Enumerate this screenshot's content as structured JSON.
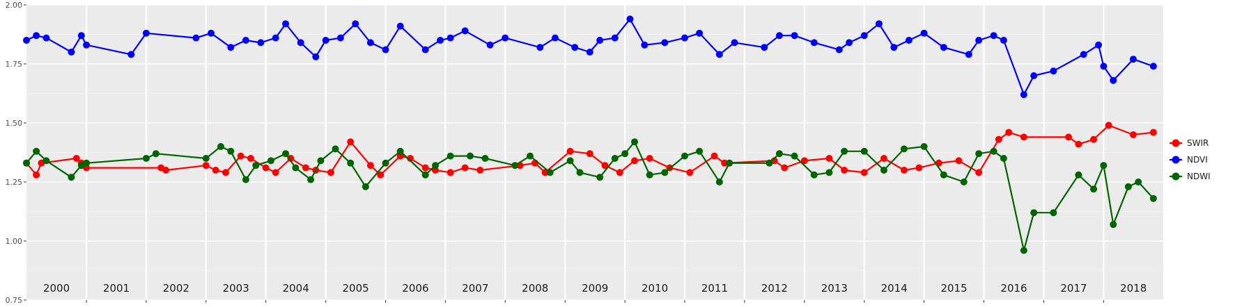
{
  "chart_data": {
    "type": "line",
    "title": "",
    "xlabel": "",
    "ylabel": "",
    "ylim": [
      0.75,
      2.0
    ],
    "xlim": [
      "2000-01-01",
      "2018-12-31"
    ],
    "y_ticks": [
      "0.75",
      "1.00",
      "1.25",
      "1.50",
      "1.75",
      "2.00"
    ],
    "year_labels": [
      "2000",
      "2001",
      "2002",
      "2003",
      "2004",
      "2005",
      "2006",
      "2007",
      "2008",
      "2009",
      "2010",
      "2011",
      "2012",
      "2013",
      "2014",
      "2015",
      "2016",
      "2017",
      "2018"
    ],
    "grid": true,
    "legend_position": "right",
    "series": [
      {
        "name": "SWIR",
        "color": "#ff0000",
        "points": [
          [
            "2000-01-01",
            1.33
          ],
          [
            "2000-03-01",
            1.28
          ],
          [
            "2000-04-01",
            1.33
          ],
          [
            "2000-11-01",
            1.35
          ],
          [
            "2000-12-01",
            1.33
          ],
          [
            "2001-01-01",
            1.31
          ],
          [
            "2002-04-01",
            1.31
          ],
          [
            "2002-05-01",
            1.3
          ],
          [
            "2003-01-01",
            1.32
          ],
          [
            "2003-03-01",
            1.3
          ],
          [
            "2003-05-01",
            1.29
          ],
          [
            "2003-08-01",
            1.36
          ],
          [
            "2003-10-01",
            1.35
          ],
          [
            "2004-01-01",
            1.31
          ],
          [
            "2004-03-01",
            1.29
          ],
          [
            "2004-06-01",
            1.35
          ],
          [
            "2004-09-01",
            1.31
          ],
          [
            "2004-11-01",
            1.3
          ],
          [
            "2005-02-01",
            1.29
          ],
          [
            "2005-06-01",
            1.42
          ],
          [
            "2005-10-01",
            1.32
          ],
          [
            "2005-12-01",
            1.28
          ],
          [
            "2006-04-01",
            1.36
          ],
          [
            "2006-06-01",
            1.35
          ],
          [
            "2006-09-01",
            1.31
          ],
          [
            "2006-11-01",
            1.3
          ],
          [
            "2007-02-01",
            1.29
          ],
          [
            "2007-05-01",
            1.31
          ],
          [
            "2007-08-01",
            1.3
          ],
          [
            "2008-04-01",
            1.32
          ],
          [
            "2008-07-01",
            1.33
          ],
          [
            "2008-09-01",
            1.29
          ],
          [
            "2009-02-01",
            1.38
          ],
          [
            "2009-06-01",
            1.37
          ],
          [
            "2009-09-01",
            1.32
          ],
          [
            "2009-12-01",
            1.29
          ],
          [
            "2010-03-01",
            1.34
          ],
          [
            "2010-06-01",
            1.35
          ],
          [
            "2010-10-01",
            1.31
          ],
          [
            "2011-02-01",
            1.29
          ],
          [
            "2011-07-01",
            1.36
          ],
          [
            "2011-09-01",
            1.33
          ],
          [
            "2012-07-01",
            1.34
          ],
          [
            "2012-09-01",
            1.31
          ],
          [
            "2013-01-01",
            1.34
          ],
          [
            "2013-06-01",
            1.35
          ],
          [
            "2013-09-01",
            1.3
          ],
          [
            "2014-01-01",
            1.29
          ],
          [
            "2014-05-01",
            1.35
          ],
          [
            "2014-09-01",
            1.3
          ],
          [
            "2014-12-01",
            1.31
          ],
          [
            "2015-04-01",
            1.33
          ],
          [
            "2015-08-01",
            1.34
          ],
          [
            "2015-12-01",
            1.29
          ],
          [
            "2016-04-01",
            1.43
          ],
          [
            "2016-06-01",
            1.46
          ],
          [
            "2016-09-01",
            1.44
          ],
          [
            "2017-06-01",
            1.44
          ],
          [
            "2017-08-01",
            1.41
          ],
          [
            "2017-11-01",
            1.43
          ],
          [
            "2018-02-01",
            1.49
          ],
          [
            "2018-07-01",
            1.45
          ],
          [
            "2018-11-01",
            1.46
          ]
        ]
      },
      {
        "name": "NDVI",
        "color": "#0000ff",
        "points": [
          [
            "2000-01-01",
            1.85
          ],
          [
            "2000-03-01",
            1.87
          ],
          [
            "2000-05-01",
            1.86
          ],
          [
            "2000-10-01",
            1.8
          ],
          [
            "2000-12-01",
            1.87
          ],
          [
            "2001-01-01",
            1.83
          ],
          [
            "2001-10-01",
            1.79
          ],
          [
            "2002-01-01",
            1.88
          ],
          [
            "2002-11-01",
            1.86
          ],
          [
            "2003-02-01",
            1.88
          ],
          [
            "2003-06-01",
            1.82
          ],
          [
            "2003-09-01",
            1.85
          ],
          [
            "2003-12-01",
            1.84
          ],
          [
            "2004-03-01",
            1.86
          ],
          [
            "2004-05-01",
            1.92
          ],
          [
            "2004-08-01",
            1.84
          ],
          [
            "2004-11-01",
            1.78
          ],
          [
            "2005-01-01",
            1.85
          ],
          [
            "2005-04-01",
            1.86
          ],
          [
            "2005-07-01",
            1.92
          ],
          [
            "2005-10-01",
            1.84
          ],
          [
            "2006-01-01",
            1.81
          ],
          [
            "2006-04-01",
            1.91
          ],
          [
            "2006-09-01",
            1.81
          ],
          [
            "2006-12-01",
            1.85
          ],
          [
            "2007-02-01",
            1.86
          ],
          [
            "2007-05-01",
            1.89
          ],
          [
            "2007-10-01",
            1.83
          ],
          [
            "2008-01-01",
            1.86
          ],
          [
            "2008-08-01",
            1.82
          ],
          [
            "2008-11-01",
            1.86
          ],
          [
            "2009-03-01",
            1.82
          ],
          [
            "2009-06-01",
            1.8
          ],
          [
            "2009-08-01",
            1.85
          ],
          [
            "2009-11-01",
            1.86
          ],
          [
            "2010-02-01",
            1.94
          ],
          [
            "2010-05-01",
            1.83
          ],
          [
            "2010-09-01",
            1.84
          ],
          [
            "2011-01-01",
            1.86
          ],
          [
            "2011-04-01",
            1.88
          ],
          [
            "2011-08-01",
            1.79
          ],
          [
            "2011-11-01",
            1.84
          ],
          [
            "2012-05-01",
            1.82
          ],
          [
            "2012-08-01",
            1.87
          ],
          [
            "2012-11-01",
            1.87
          ],
          [
            "2013-03-01",
            1.84
          ],
          [
            "2013-08-01",
            1.81
          ],
          [
            "2013-10-01",
            1.84
          ],
          [
            "2014-01-01",
            1.87
          ],
          [
            "2014-04-01",
            1.92
          ],
          [
            "2014-07-01",
            1.82
          ],
          [
            "2014-10-01",
            1.85
          ],
          [
            "2015-01-01",
            1.88
          ],
          [
            "2015-05-01",
            1.82
          ],
          [
            "2015-10-01",
            1.79
          ],
          [
            "2015-12-01",
            1.85
          ],
          [
            "2016-03-01",
            1.87
          ],
          [
            "2016-05-01",
            1.85
          ],
          [
            "2016-09-01",
            1.62
          ],
          [
            "2016-11-01",
            1.7
          ],
          [
            "2017-03-01",
            1.72
          ],
          [
            "2017-09-01",
            1.79
          ],
          [
            "2017-12-01",
            1.83
          ],
          [
            "2018-01-01",
            1.74
          ],
          [
            "2018-03-01",
            1.68
          ],
          [
            "2018-07-01",
            1.77
          ],
          [
            "2018-11-01",
            1.74
          ]
        ]
      },
      {
        "name": "NDWI",
        "color": "#006400",
        "points": [
          [
            "2000-01-01",
            1.33
          ],
          [
            "2000-03-01",
            1.38
          ],
          [
            "2000-05-01",
            1.34
          ],
          [
            "2000-10-01",
            1.27
          ],
          [
            "2000-12-01",
            1.32
          ],
          [
            "2001-01-01",
            1.33
          ],
          [
            "2002-01-01",
            1.35
          ],
          [
            "2002-03-01",
            1.37
          ],
          [
            "2003-01-01",
            1.35
          ],
          [
            "2003-04-01",
            1.4
          ],
          [
            "2003-06-01",
            1.38
          ],
          [
            "2003-09-01",
            1.26
          ],
          [
            "2003-11-01",
            1.32
          ],
          [
            "2004-02-01",
            1.34
          ],
          [
            "2004-05-01",
            1.37
          ],
          [
            "2004-07-01",
            1.31
          ],
          [
            "2004-10-01",
            1.26
          ],
          [
            "2004-12-01",
            1.34
          ],
          [
            "2005-03-01",
            1.39
          ],
          [
            "2005-06-01",
            1.33
          ],
          [
            "2005-09-01",
            1.23
          ],
          [
            "2006-01-01",
            1.33
          ],
          [
            "2006-04-01",
            1.38
          ],
          [
            "2006-09-01",
            1.28
          ],
          [
            "2006-11-01",
            1.32
          ],
          [
            "2007-02-01",
            1.36
          ],
          [
            "2007-06-01",
            1.36
          ],
          [
            "2007-09-01",
            1.35
          ],
          [
            "2008-03-01",
            1.32
          ],
          [
            "2008-06-01",
            1.36
          ],
          [
            "2008-10-01",
            1.29
          ],
          [
            "2009-02-01",
            1.34
          ],
          [
            "2009-04-01",
            1.29
          ],
          [
            "2009-08-01",
            1.27
          ],
          [
            "2009-11-01",
            1.35
          ],
          [
            "2010-01-01",
            1.37
          ],
          [
            "2010-03-01",
            1.42
          ],
          [
            "2010-06-01",
            1.28
          ],
          [
            "2010-09-01",
            1.29
          ],
          [
            "2011-01-01",
            1.36
          ],
          [
            "2011-04-01",
            1.38
          ],
          [
            "2011-08-01",
            1.25
          ],
          [
            "2011-10-01",
            1.33
          ],
          [
            "2012-06-01",
            1.33
          ],
          [
            "2012-08-01",
            1.37
          ],
          [
            "2012-11-01",
            1.36
          ],
          [
            "2013-03-01",
            1.28
          ],
          [
            "2013-06-01",
            1.29
          ],
          [
            "2013-09-01",
            1.38
          ],
          [
            "2014-01-01",
            1.38
          ],
          [
            "2014-05-01",
            1.3
          ],
          [
            "2014-09-01",
            1.39
          ],
          [
            "2015-01-01",
            1.4
          ],
          [
            "2015-05-01",
            1.28
          ],
          [
            "2015-09-01",
            1.25
          ],
          [
            "2015-12-01",
            1.37
          ],
          [
            "2016-03-01",
            1.38
          ],
          [
            "2016-05-01",
            1.35
          ],
          [
            "2016-09-01",
            0.96
          ],
          [
            "2016-11-01",
            1.12
          ],
          [
            "2017-03-01",
            1.12
          ],
          [
            "2017-08-01",
            1.28
          ],
          [
            "2017-11-01",
            1.22
          ],
          [
            "2018-01-01",
            1.32
          ],
          [
            "2018-03-01",
            1.07
          ],
          [
            "2018-06-01",
            1.23
          ],
          [
            "2018-08-01",
            1.25
          ],
          [
            "2018-11-01",
            1.18
          ]
        ]
      }
    ]
  }
}
